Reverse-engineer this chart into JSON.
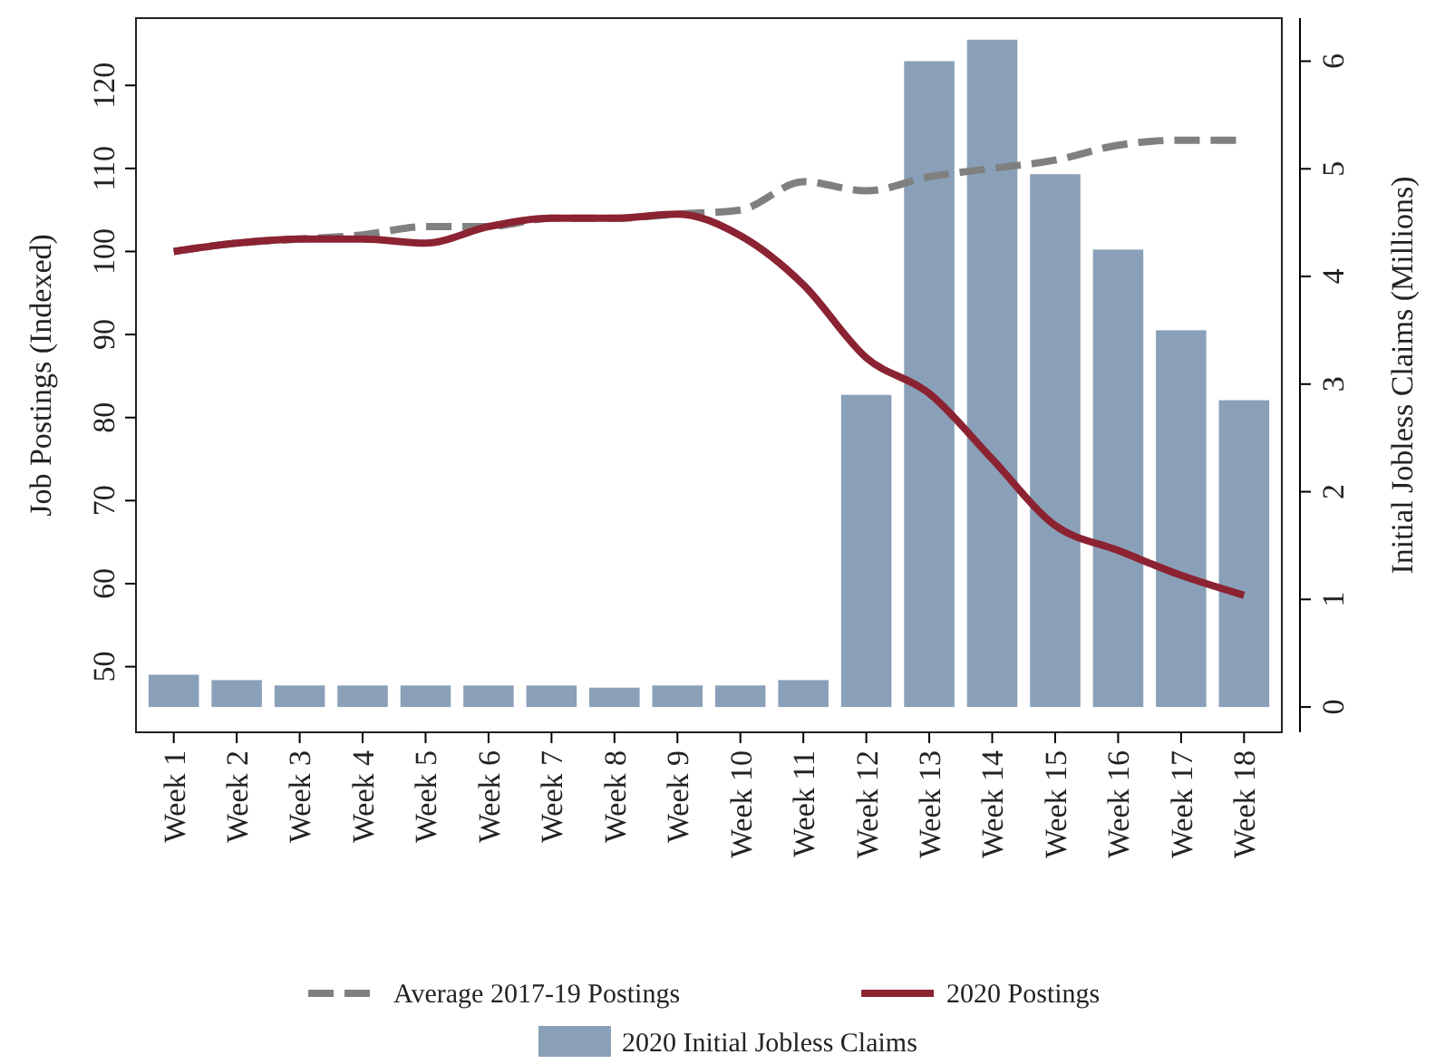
{
  "chart_data": {
    "type": "line",
    "ylabel": "Job Postings (Indexed)",
    "y2label": "Initial Jobless Claims (Millions)",
    "categories": [
      "Week 1",
      "Week 2",
      "Week 3",
      "Week 4",
      "Week 5",
      "Week 6",
      "Week 7",
      "Week 8",
      "Week 9",
      "Week 10",
      "Week 11",
      "Week 12",
      "Week 13",
      "Week 14",
      "Week 15",
      "Week 16",
      "Week 17",
      "Week 18"
    ],
    "series": [
      {
        "name": "2020 Initial Jobless Claims",
        "type": "bar",
        "axis": "y2",
        "color": "#8aa0b8",
        "values": [
          0.3,
          0.25,
          0.2,
          0.2,
          0.2,
          0.2,
          0.2,
          0.18,
          0.2,
          0.2,
          0.25,
          2.9,
          6.0,
          6.2,
          4.95,
          4.25,
          3.5,
          2.85
        ]
      },
      {
        "name": "Average 2017-19 Postings",
        "line_style": "dashed",
        "color": "#808080",
        "values": [
          100,
          101,
          101.5,
          102,
          103,
          103,
          104,
          104,
          104.5,
          105,
          108.4,
          107.3,
          109,
          110,
          111,
          112.8,
          113.4,
          113.4
        ]
      },
      {
        "name": "2020 Postings",
        "line_style": "solid",
        "color": "#8b2332",
        "values": [
          100,
          101,
          101.5,
          101.5,
          101,
          103,
          104,
          104,
          104.5,
          101.9,
          96,
          87.2,
          82.9,
          75,
          67,
          64,
          61,
          58.6
        ]
      }
    ],
    "ylim": [
      42.1,
      128.1
    ],
    "yticks": [
      50,
      60,
      70,
      80,
      90,
      100,
      110,
      120
    ],
    "y2lim": [
      -0.235,
      6.4
    ],
    "y2ticks": [
      0,
      1,
      2,
      3,
      4,
      5,
      6
    ],
    "legend": "bottom",
    "grid": false
  }
}
